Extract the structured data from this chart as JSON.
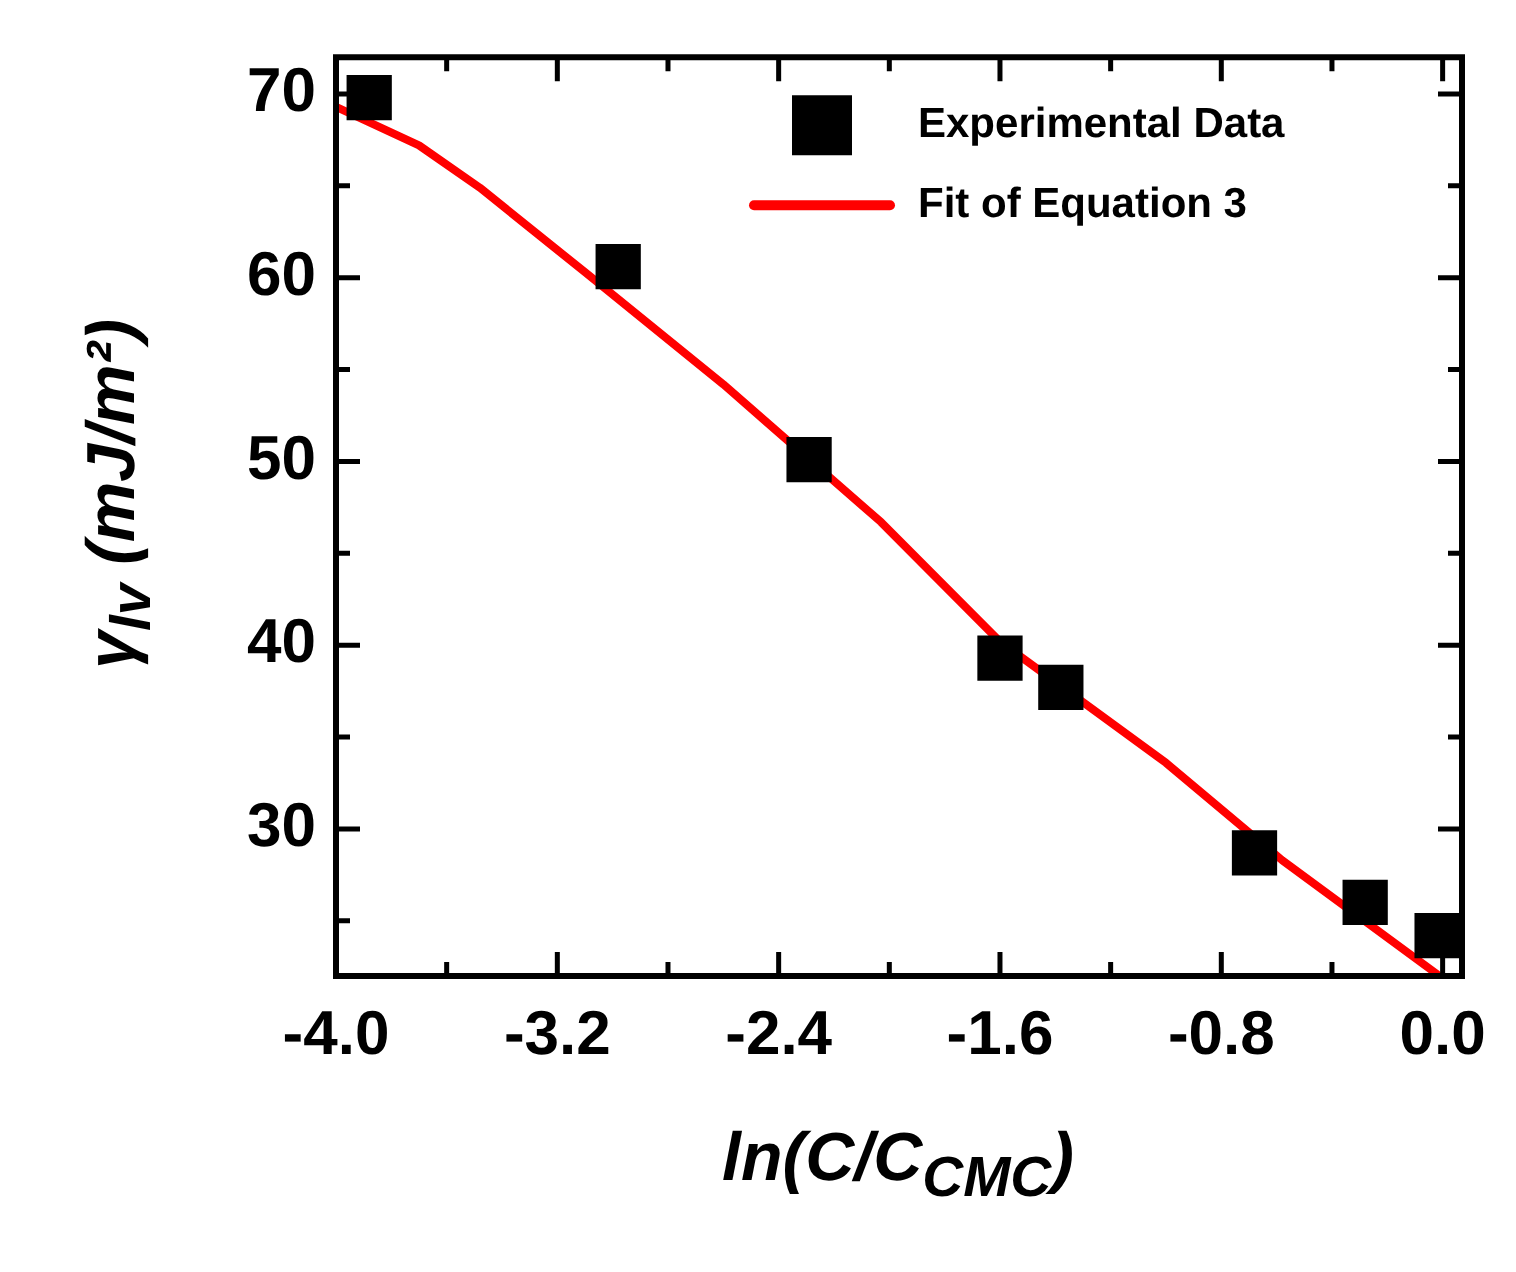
{
  "chart_data": {
    "type": "scatter",
    "xlabel": "ln(C/C$_{CMC}$)",
    "ylabel": "γ$_{lv}$ (mJ/m²)",
    "xlim": [
      -4.0,
      0.07
    ],
    "ylim": [
      22,
      72
    ],
    "xticks": [
      {
        "value": -4.0,
        "label": "-4.0"
      },
      {
        "value": -3.6,
        "label": null
      },
      {
        "value": -3.2,
        "label": "-3.2"
      },
      {
        "value": -2.8,
        "label": null
      },
      {
        "value": -2.4,
        "label": "-2.4"
      },
      {
        "value": -2.0,
        "label": null
      },
      {
        "value": -1.6,
        "label": "-1.6"
      },
      {
        "value": -1.2,
        "label": null
      },
      {
        "value": -0.8,
        "label": "-0.8"
      },
      {
        "value": -0.4,
        "label": null
      },
      {
        "value": 0,
        "label": "0.0"
      }
    ],
    "yticks": [
      {
        "value": 25,
        "label": null
      },
      30,
      {
        "value": 35,
        "label": null
      },
      40,
      {
        "value": 45,
        "label": null
      },
      50,
      {
        "value": 55,
        "label": null
      },
      60,
      {
        "value": 65,
        "label": null
      },
      70
    ],
    "grid": false,
    "legend": "top right",
    "marker": "square",
    "series": [
      {
        "name": "Experimental Data",
        "color": "#000000",
        "x": [
          -3.88,
          -2.98,
          -2.29,
          -1.6,
          -1.38,
          -0.68,
          -0.28,
          -0.02
        ],
        "values": [
          69.8,
          60.6,
          50.1,
          39.3,
          37.7,
          28.7,
          26.0,
          24.2
        ]
      },
      {
        "name": "Fit of Equation 3",
        "type": "line",
        "color": "#ff0000",
        "marker": "none",
        "line_style": "solid",
        "x": [
          -4.0,
          -3.7,
          -3.48,
          -3.1,
          -2.6,
          -2.03,
          -1.6,
          -1.0,
          -0.58,
          -0.02
        ],
        "values": [
          69.3,
          67.2,
          64.9,
          60.3,
          54.2,
          46.7,
          40.2,
          33.6,
          28.3,
          22.1
        ]
      }
    ]
  }
}
